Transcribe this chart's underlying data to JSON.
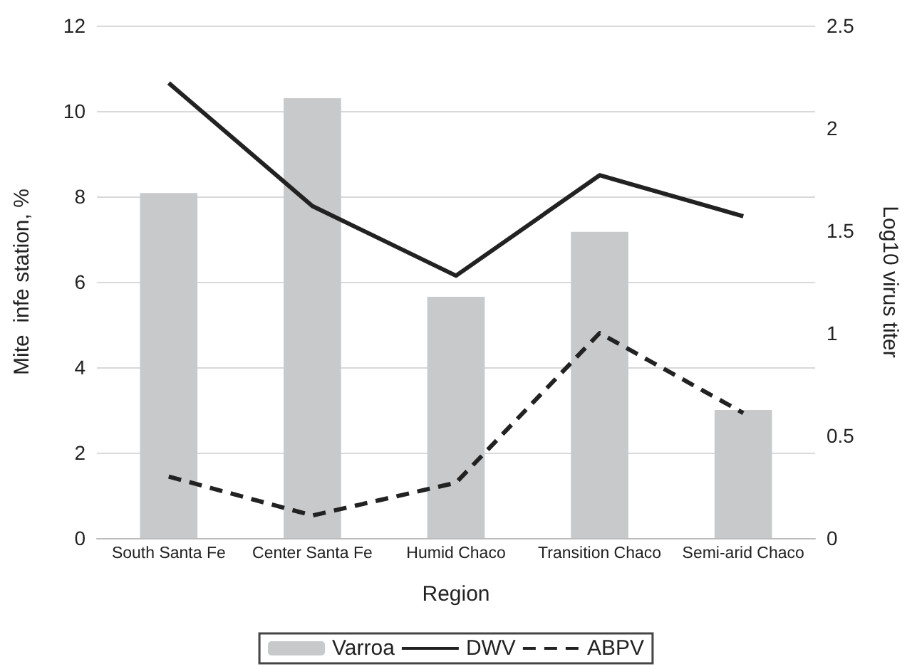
{
  "chart_data": {
    "type": "bar",
    "xlabel": "Region",
    "ylabel": "Mite  infe station, %",
    "y2label": "Log10 virus titer",
    "categories": [
      "South Santa Fe",
      "Center Santa Fe",
      "Humid Chaco",
      "Transition Chaco",
      "Semi-arid Chaco"
    ],
    "series": [
      {
        "name": "Varroa",
        "color": "#c8c9cb",
        "values": [
          8.08,
          10.3,
          5.65,
          7.17,
          3.0
        ]
      },
      {
        "name": "DWV",
        "type": "line",
        "axis": "y2",
        "color": "#222222",
        "line_style": "solid",
        "values": [
          2.22,
          1.62,
          1.28,
          1.77,
          1.57
        ]
      },
      {
        "name": "ABPV",
        "type": "line",
        "axis": "y2",
        "color": "#222222",
        "line_style": "dashed",
        "values": [
          0.3,
          0.11,
          0.27,
          1.0,
          0.61
        ]
      }
    ],
    "ylim": [
      0,
      12
    ],
    "yticks": [
      0,
      2,
      4,
      6,
      8,
      10,
      12
    ],
    "y2lim": [
      0,
      2.5
    ],
    "y2ticks": [
      0,
      0.5,
      1,
      1.5,
      2,
      2.5
    ],
    "grid": "y",
    "legend": "bottom",
    "marker": "none"
  }
}
